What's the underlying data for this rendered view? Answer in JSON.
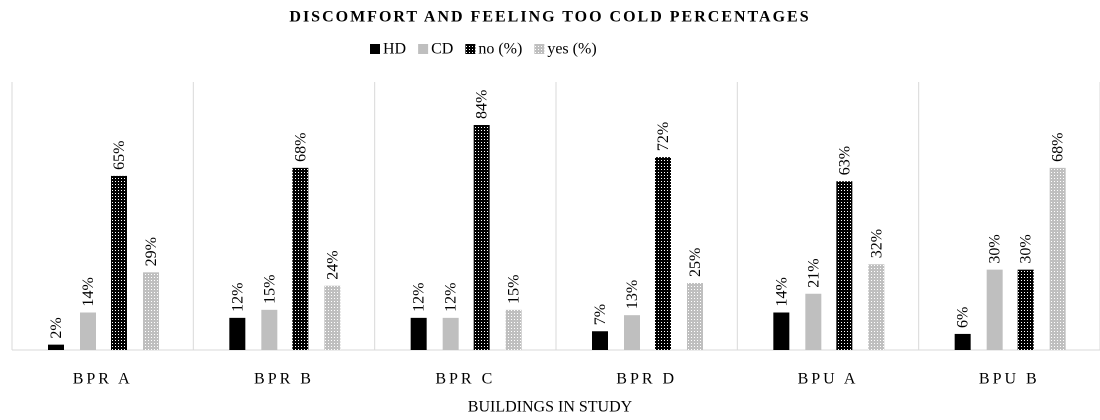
{
  "chart_data": {
    "type": "bar",
    "title": "DISCOMFORT AND FEELING TOO COLD PERCENTAGES",
    "x_label": "BUILDINGS IN STUDY",
    "categories": [
      "BPR A",
      "BPR B",
      "BPR C",
      "BPR D",
      "BPU A",
      "BPU B"
    ],
    "series": [
      {
        "name": "HD",
        "color": "#000000",
        "pattern": "solid",
        "values": [
          2,
          12,
          12,
          7,
          14,
          6
        ],
        "value_labels": [
          "2%",
          "12%",
          "12%",
          "7%",
          "14%",
          "6%"
        ]
      },
      {
        "name": "CD",
        "color": "#bfbfbf",
        "pattern": "solid",
        "values": [
          14,
          15,
          12,
          13,
          21,
          30
        ],
        "value_labels": [
          "14%",
          "15%",
          "12%",
          "13%",
          "21%",
          "30%"
        ]
      },
      {
        "name": "no (%)",
        "color": "#000000",
        "pattern": "dots",
        "values": [
          65,
          68,
          84,
          72,
          63,
          30
        ],
        "value_labels": [
          "65%",
          "68%",
          "84%",
          "72%",
          "63%",
          "30%"
        ]
      },
      {
        "name": "yes (%)",
        "color": "#bfbfbf",
        "pattern": "dots",
        "values": [
          29,
          24,
          15,
          25,
          32,
          68
        ],
        "value_labels": [
          "29%",
          "24%",
          "15%",
          "25%",
          "32%",
          "68%"
        ]
      }
    ],
    "legend": "top"
  }
}
